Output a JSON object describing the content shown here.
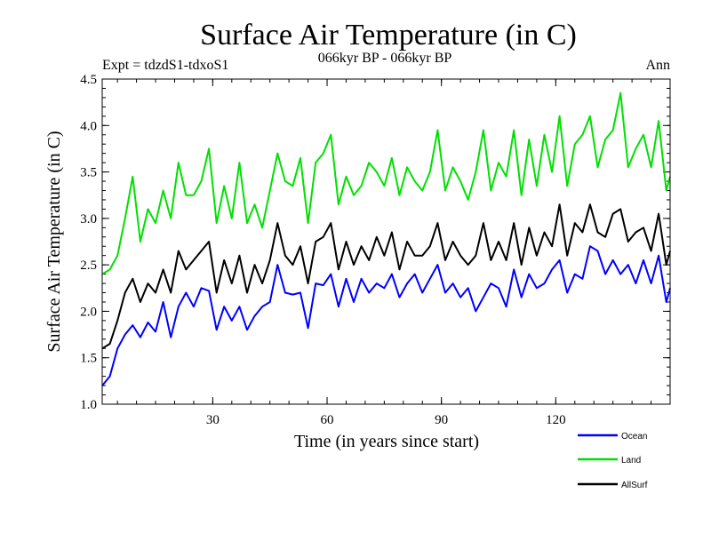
{
  "chart_data": {
    "type": "line",
    "title": "Surface Air Temperature (in C)",
    "subtitle": "066kyr BP - 066kyr BP",
    "experiment_label": "Expt = tdzdS1-tdxoS1",
    "period_label": "Ann",
    "xlabel": "Time (in years since start)",
    "ylabel": "Surface Air Temperature (in C)",
    "xlim": [
      1,
      150
    ],
    "ylim": [
      1.0,
      4.5
    ],
    "x_ticks": [
      30,
      60,
      90,
      120
    ],
    "y_ticks": [
      "1.0",
      "1.5",
      "2.0",
      "2.5",
      "3.0",
      "3.5",
      "4.0",
      "4.5"
    ],
    "x": [
      1,
      3,
      5,
      7,
      9,
      11,
      13,
      15,
      17,
      19,
      21,
      23,
      25,
      27,
      29,
      31,
      33,
      35,
      37,
      39,
      41,
      43,
      45,
      47,
      49,
      51,
      53,
      55,
      57,
      59,
      61,
      63,
      65,
      67,
      69,
      71,
      73,
      75,
      77,
      79,
      81,
      83,
      85,
      87,
      89,
      91,
      93,
      95,
      97,
      99,
      101,
      103,
      105,
      107,
      109,
      111,
      113,
      115,
      117,
      119,
      121,
      123,
      125,
      127,
      129,
      131,
      133,
      135,
      137,
      139,
      141,
      143,
      145,
      147,
      149,
      150
    ],
    "series": [
      {
        "name": "Ocean",
        "color": "#0000ff",
        "values": [
          1.2,
          1.3,
          1.6,
          1.75,
          1.85,
          1.72,
          1.88,
          1.78,
          2.1,
          1.72,
          2.05,
          2.2,
          2.05,
          2.25,
          2.22,
          1.8,
          2.05,
          1.9,
          2.05,
          1.8,
          1.95,
          2.05,
          2.1,
          2.5,
          2.2,
          2.18,
          2.2,
          1.82,
          2.3,
          2.28,
          2.4,
          2.05,
          2.35,
          2.1,
          2.35,
          2.2,
          2.3,
          2.25,
          2.4,
          2.15,
          2.3,
          2.4,
          2.2,
          2.35,
          2.5,
          2.2,
          2.3,
          2.15,
          2.25,
          2.0,
          2.15,
          2.3,
          2.25,
          2.05,
          2.45,
          2.15,
          2.4,
          2.25,
          2.3,
          2.45,
          2.55,
          2.2,
          2.4,
          2.35,
          2.7,
          2.65,
          2.4,
          2.55,
          2.4,
          2.5,
          2.3,
          2.55,
          2.3,
          2.6,
          2.1,
          2.25
        ]
      },
      {
        "name": "Land",
        "color": "#00e000",
        "values": [
          2.4,
          2.45,
          2.6,
          3.0,
          3.45,
          2.75,
          3.1,
          2.95,
          3.3,
          3.0,
          3.6,
          3.25,
          3.25,
          3.4,
          3.75,
          2.95,
          3.35,
          3.0,
          3.6,
          2.95,
          3.15,
          2.9,
          3.3,
          3.7,
          3.4,
          3.35,
          3.65,
          2.95,
          3.6,
          3.7,
          3.9,
          3.15,
          3.45,
          3.25,
          3.35,
          3.6,
          3.5,
          3.35,
          3.65,
          3.25,
          3.55,
          3.4,
          3.3,
          3.5,
          3.95,
          3.3,
          3.55,
          3.4,
          3.2,
          3.5,
          3.95,
          3.3,
          3.6,
          3.45,
          3.95,
          3.25,
          3.85,
          3.35,
          3.9,
          3.5,
          4.1,
          3.35,
          3.8,
          3.9,
          4.1,
          3.55,
          3.85,
          3.95,
          4.35,
          3.55,
          3.75,
          3.9,
          3.55,
          4.05,
          3.3,
          3.45
        ]
      },
      {
        "name": "AllSurf",
        "color": "#000000",
        "values": [
          1.6,
          1.65,
          1.9,
          2.2,
          2.35,
          2.1,
          2.3,
          2.2,
          2.45,
          2.2,
          2.65,
          2.45,
          2.55,
          2.65,
          2.75,
          2.2,
          2.55,
          2.3,
          2.6,
          2.2,
          2.5,
          2.3,
          2.55,
          2.95,
          2.6,
          2.5,
          2.7,
          2.3,
          2.75,
          2.8,
          2.95,
          2.45,
          2.75,
          2.5,
          2.7,
          2.55,
          2.8,
          2.6,
          2.85,
          2.45,
          2.75,
          2.6,
          2.6,
          2.7,
          2.95,
          2.55,
          2.75,
          2.6,
          2.5,
          2.6,
          2.95,
          2.55,
          2.75,
          2.55,
          2.95,
          2.5,
          2.9,
          2.6,
          2.85,
          2.7,
          3.15,
          2.6,
          2.95,
          2.85,
          3.15,
          2.85,
          2.8,
          3.05,
          3.1,
          2.75,
          2.85,
          2.9,
          2.65,
          3.05,
          2.5,
          2.65
        ]
      }
    ],
    "legend_position": "bottom-right"
  }
}
